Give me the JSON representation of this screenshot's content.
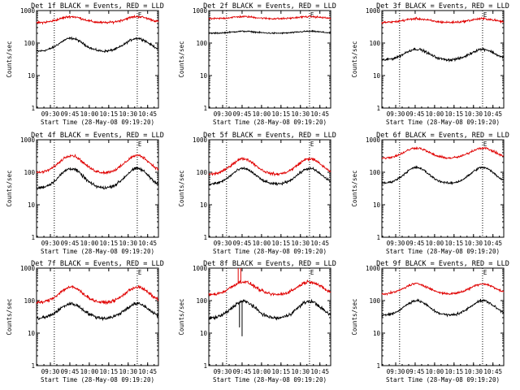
{
  "chart_data": [
    {
      "type": "line",
      "title": "Det 1f BLACK = Events, RED = LLD",
      "ylabel": "Counts/sec",
      "xlabel": "Start Time (28-May-08 09:19:20)",
      "yscale": "log",
      "ylim": [
        1,
        1000
      ],
      "xlim_minutes": [
        0,
        94
      ],
      "x_tick_labels": [
        "09:30",
        "09:45",
        "10:00",
        "10:15",
        "10:30",
        "10:45"
      ],
      "marker_lines": [
        {
          "label": "",
          "time": "09:33"
        },
        {
          "label": "E",
          "time": "10:37"
        }
      ],
      "series": [
        {
          "name": "Events",
          "color": "#000000",
          "base": 55,
          "peak": 140,
          "peaks": [
            "09:46",
            "10:37"
          ],
          "noise": 0.05
        },
        {
          "name": "LLD",
          "color": "#e00000",
          "base": 420,
          "peak": 650,
          "peaks": [
            "09:46",
            "10:37"
          ],
          "noise": 0.05
        }
      ],
      "spikes": []
    },
    {
      "type": "line",
      "title": "Det 2f BLACK = Events, RED = LLD",
      "ylabel": "Counts/sec",
      "xlabel": "Start Time (28-May-08 09:19:20)",
      "yscale": "log",
      "ylim": [
        1,
        1000
      ],
      "xlim_minutes": [
        0,
        94
      ],
      "x_tick_labels": [
        "09:30",
        "09:45",
        "10:00",
        "10:15",
        "10:30",
        "10:45"
      ],
      "marker_lines": [
        {
          "label": "",
          "time": "09:33"
        },
        {
          "label": "E",
          "time": "10:37"
        }
      ],
      "series": [
        {
          "name": "Events",
          "color": "#000000",
          "base": 200,
          "peak": 230,
          "peaks": [
            "09:46",
            "10:37"
          ],
          "noise": 0.03
        },
        {
          "name": "LLD",
          "color": "#e00000",
          "base": 560,
          "peak": 650,
          "peaks": [
            "09:46",
            "10:37"
          ],
          "noise": 0.04
        }
      ],
      "spikes": []
    },
    {
      "type": "line",
      "title": "Det 3f BLACK = Events, RED = LLD",
      "ylabel": "Counts/sec",
      "xlabel": "Start Time (28-May-08 09:19:20)",
      "yscale": "log",
      "ylim": [
        1,
        1000
      ],
      "xlim_minutes": [
        0,
        94
      ],
      "x_tick_labels": [
        "09:30",
        "09:45",
        "10:00",
        "10:15",
        "10:30",
        "10:45"
      ],
      "marker_lines": [
        {
          "label": "",
          "time": "09:33"
        },
        {
          "label": "E",
          "time": "10:37"
        }
      ],
      "series": [
        {
          "name": "Events",
          "color": "#000000",
          "base": 30,
          "peak": 65,
          "peaks": [
            "09:46",
            "10:37"
          ],
          "noise": 0.06
        },
        {
          "name": "LLD",
          "color": "#e00000",
          "base": 430,
          "peak": 560,
          "peaks": [
            "09:46",
            "10:37"
          ],
          "noise": 0.05
        }
      ],
      "spikes": []
    },
    {
      "type": "line",
      "title": "Det 4f BLACK = Events, RED = LLD",
      "ylabel": "Counts/sec",
      "xlabel": "Start Time (28-May-08 09:19:20)",
      "yscale": "log",
      "ylim": [
        1,
        1000
      ],
      "xlim_minutes": [
        0,
        94
      ],
      "x_tick_labels": [
        "09:30",
        "09:45",
        "10:00",
        "10:15",
        "10:30",
        "10:45"
      ],
      "marker_lines": [
        {
          "label": "",
          "time": "09:33"
        },
        {
          "label": "E",
          "time": "10:37"
        }
      ],
      "series": [
        {
          "name": "Events",
          "color": "#000000",
          "base": 32,
          "peak": 130,
          "peaks": [
            "09:46",
            "10:37"
          ],
          "noise": 0.07
        },
        {
          "name": "LLD",
          "color": "#e00000",
          "base": 95,
          "peak": 330,
          "peaks": [
            "09:46",
            "10:37"
          ],
          "noise": 0.06
        }
      ],
      "spikes": []
    },
    {
      "type": "line",
      "title": "Det 5f BLACK = Events, RED = LLD",
      "ylabel": "Counts/sec",
      "xlabel": "Start Time (28-May-08 09:19:20)",
      "yscale": "log",
      "ylim": [
        1,
        1000
      ],
      "xlim_minutes": [
        0,
        94
      ],
      "x_tick_labels": [
        "09:30",
        "09:45",
        "10:00",
        "10:15",
        "10:30",
        "10:45"
      ],
      "marker_lines": [
        {
          "label": "",
          "time": "09:33"
        },
        {
          "label": "E",
          "time": "10:37"
        }
      ],
      "series": [
        {
          "name": "Events",
          "color": "#000000",
          "base": 42,
          "peak": 130,
          "peaks": [
            "09:46",
            "10:37"
          ],
          "noise": 0.06
        },
        {
          "name": "LLD",
          "color": "#e00000",
          "base": 85,
          "peak": 260,
          "peaks": [
            "09:46",
            "10:37"
          ],
          "noise": 0.06
        }
      ],
      "spikes": []
    },
    {
      "type": "line",
      "title": "Det 6f BLACK = Events, RED = LLD",
      "ylabel": "Counts/sec",
      "xlabel": "Start Time (28-May-08 09:19:20)",
      "yscale": "log",
      "ylim": [
        1,
        1000
      ],
      "xlim_minutes": [
        0,
        94
      ],
      "x_tick_labels": [
        "09:30",
        "09:45",
        "10:00",
        "10:15",
        "10:30",
        "10:45"
      ],
      "marker_lines": [
        {
          "label": "",
          "time": "09:33"
        },
        {
          "label": "E",
          "time": "10:37"
        }
      ],
      "series": [
        {
          "name": "Events",
          "color": "#000000",
          "base": 45,
          "peak": 140,
          "peaks": [
            "09:46",
            "10:37"
          ],
          "noise": 0.05
        },
        {
          "name": "LLD",
          "color": "#e00000",
          "base": 270,
          "peak": 560,
          "peaks": [
            "09:46",
            "10:37"
          ],
          "noise": 0.05
        }
      ],
      "spikes": []
    },
    {
      "type": "line",
      "title": "Det 7f BLACK = Events, RED = LLD",
      "ylabel": "Counts/sec",
      "xlabel": "Start Time (28-May-08 09:19:20)",
      "yscale": "log",
      "ylim": [
        1,
        1000
      ],
      "xlim_minutes": [
        0,
        94
      ],
      "x_tick_labels": [
        "09:30",
        "09:45",
        "10:00",
        "10:15",
        "10:30",
        "10:45"
      ],
      "marker_lines": [
        {
          "label": "",
          "time": "09:33"
        },
        {
          "label": "E",
          "time": "10:37"
        }
      ],
      "series": [
        {
          "name": "Events",
          "color": "#000000",
          "base": 28,
          "peak": 80,
          "peaks": [
            "09:46",
            "10:37"
          ],
          "noise": 0.08
        },
        {
          "name": "LLD",
          "color": "#e00000",
          "base": 85,
          "peak": 260,
          "peaks": [
            "09:46",
            "10:37"
          ],
          "noise": 0.07
        }
      ],
      "spikes": []
    },
    {
      "type": "line",
      "title": "Det 8f BLACK = Events, RED = LLD",
      "ylabel": "Counts/sec",
      "xlabel": "Start Time (28-May-08 09:19:20)",
      "yscale": "log",
      "ylim": [
        1,
        1000
      ],
      "xlim_minutes": [
        0,
        94
      ],
      "x_tick_labels": [
        "09:30",
        "09:45",
        "10:00",
        "10:15",
        "10:30",
        "10:45"
      ],
      "marker_lines": [
        {
          "label": "",
          "time": "09:33"
        },
        {
          "label": "E",
          "time": "10:37"
        }
      ],
      "series": [
        {
          "name": "Events",
          "color": "#000000",
          "base": 28,
          "peak": 95,
          "peaks": [
            "09:46",
            "10:37"
          ],
          "noise": 0.08
        },
        {
          "name": "LLD",
          "color": "#e00000",
          "base": 150,
          "peak": 380,
          "peaks": [
            "09:46",
            "10:37"
          ],
          "noise": 0.07
        }
      ],
      "spikes": [
        {
          "series": "LLD",
          "time": "09:42",
          "value": 1000
        },
        {
          "series": "LLD",
          "time": "09:44",
          "value": 1000
        },
        {
          "series": "Events",
          "time": "09:45",
          "value": 8
        },
        {
          "series": "Events",
          "time": "09:43",
          "value": 15
        }
      ]
    },
    {
      "type": "line",
      "title": "Det 9f BLACK = Events, RED = LLD",
      "ylabel": "Counts/sec",
      "xlabel": "Start Time (28-May-08 09:19:20)",
      "yscale": "log",
      "ylim": [
        1,
        1000
      ],
      "xlim_minutes": [
        0,
        94
      ],
      "x_tick_labels": [
        "09:30",
        "09:45",
        "10:00",
        "10:15",
        "10:30",
        "10:45"
      ],
      "marker_lines": [
        {
          "label": "",
          "time": "09:33"
        },
        {
          "label": "E",
          "time": "10:37"
        }
      ],
      "series": [
        {
          "name": "Events",
          "color": "#000000",
          "base": 35,
          "peak": 100,
          "peaks": [
            "09:46",
            "10:37"
          ],
          "noise": 0.06
        },
        {
          "name": "LLD",
          "color": "#e00000",
          "base": 160,
          "peak": 330,
          "peaks": [
            "09:46",
            "10:37"
          ],
          "noise": 0.05
        }
      ],
      "spikes": []
    }
  ],
  "y_tick_labels": [
    "1",
    "10",
    "100",
    "1000"
  ]
}
